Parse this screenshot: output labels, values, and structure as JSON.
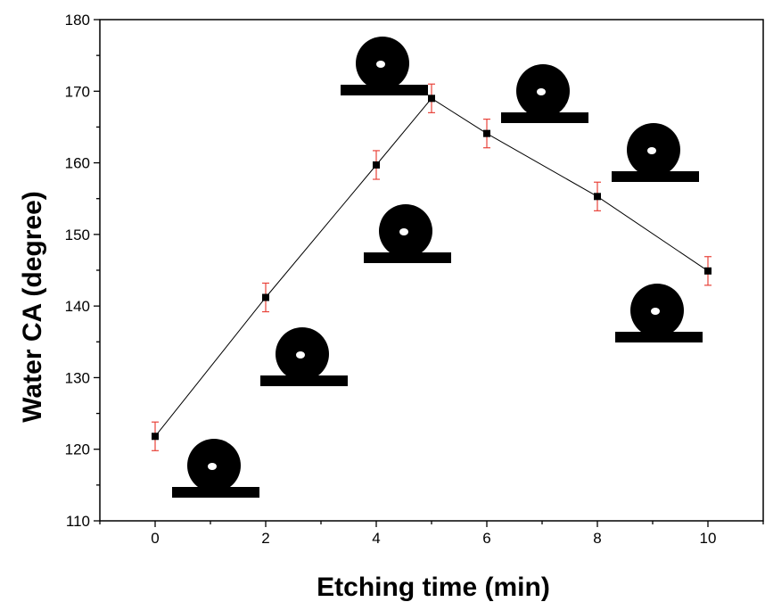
{
  "chart_data": {
    "type": "scatter",
    "title": "",
    "xlabel": "Etching time (min)",
    "ylabel": "Water CA (degree)",
    "xlim": [
      -1,
      11
    ],
    "ylim": [
      110,
      180
    ],
    "xticks": [
      0,
      2,
      4,
      6,
      8,
      10
    ],
    "yticks": [
      110,
      120,
      130,
      140,
      150,
      160,
      170,
      180
    ],
    "series": [
      {
        "x": [
          0,
          2,
          4,
          5,
          6,
          8,
          10
        ],
        "y": [
          121.8,
          141.2,
          159.7,
          169.0,
          164.1,
          155.3,
          144.9
        ],
        "error": [
          2.0,
          2.0,
          2.0,
          2.0,
          2.0,
          2.0,
          2.0
        ],
        "color": "#000000",
        "error_color": "#e8433a",
        "marker": "square",
        "line": true
      }
    ],
    "insets": [
      {
        "name": "droplet-image",
        "depicts": "water droplet on surface",
        "x": 0
      },
      {
        "name": "droplet-image",
        "depicts": "water droplet on surface",
        "x": 2
      },
      {
        "name": "droplet-image",
        "depicts": "water droplet on surface",
        "x": 4
      },
      {
        "name": "droplet-image",
        "depicts": "water droplet on surface",
        "x": 5
      },
      {
        "name": "droplet-image",
        "depicts": "water droplet on surface",
        "x": 6
      },
      {
        "name": "droplet-image",
        "depicts": "water droplet on surface",
        "x": 8
      },
      {
        "name": "droplet-image",
        "depicts": "water droplet on surface",
        "x": 10
      }
    ],
    "grid": false,
    "legend": "none"
  }
}
